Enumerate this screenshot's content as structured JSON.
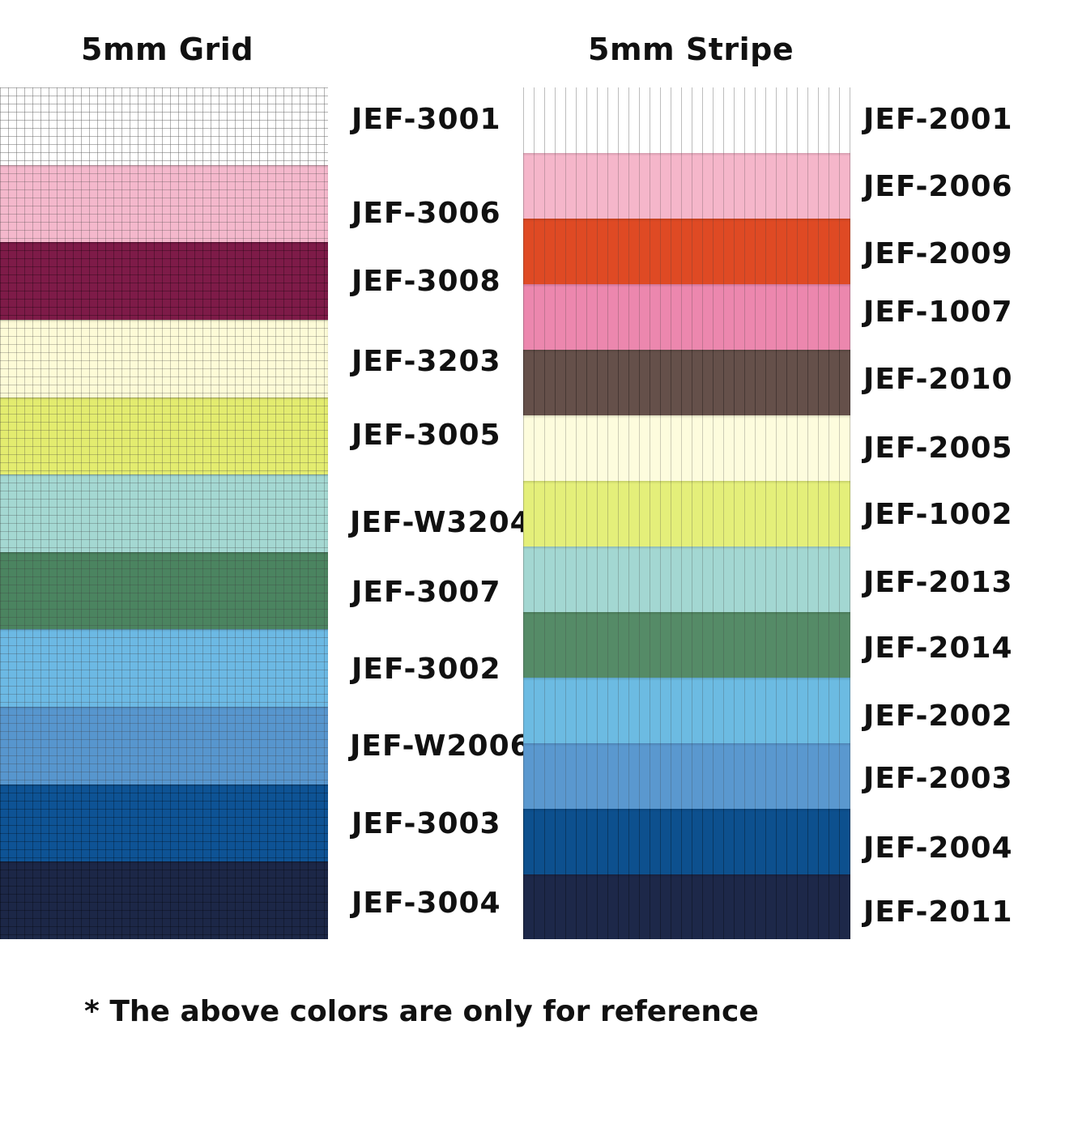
{
  "titles": {
    "grid": "5mm Grid",
    "stripe": "5mm Stripe"
  },
  "grid_swatches": [
    {
      "code": "JEF-3001",
      "color": "#ffffff"
    },
    {
      "code": "JEF-3006",
      "color": "#f4b8cc"
    },
    {
      "code": "JEF-3008",
      "color": "#7e1b48"
    },
    {
      "code": "JEF-3203",
      "color": "#fdfbd7"
    },
    {
      "code": "JEF-3005",
      "color": "#e3ec6f"
    },
    {
      "code": "JEF-W3204",
      "color": "#a4d8d2"
    },
    {
      "code": "JEF-3007",
      "color": "#4b8460"
    },
    {
      "code": "JEF-3002",
      "color": "#6cb9e4"
    },
    {
      "code": "JEF-W2006",
      "color": "#5796ce"
    },
    {
      "code": "JEF-3003",
      "color": "#0e5395"
    },
    {
      "code": "JEF-3004",
      "color": "#1c2747"
    }
  ],
  "stripe_swatches": [
    {
      "code": "JEF-2001",
      "color": "#ffffff"
    },
    {
      "code": "JEF-2006",
      "color": "#f5b6ca"
    },
    {
      "code": "JEF-2009",
      "color": "#df4a24"
    },
    {
      "code": "JEF-1007",
      "color": "#ec87ae"
    },
    {
      "code": "JEF-2010",
      "color": "#65504a"
    },
    {
      "code": "JEF-2005",
      "color": "#fdfcdd"
    },
    {
      "code": "JEF-1002",
      "color": "#e4ef7a"
    },
    {
      "code": "JEF-2013",
      "color": "#a3d7d2"
    },
    {
      "code": "JEF-2014",
      "color": "#558b67"
    },
    {
      "code": "JEF-2002",
      "color": "#6cbbe2"
    },
    {
      "code": "JEF-2003",
      "color": "#5a98cf"
    },
    {
      "code": "JEF-2004",
      "color": "#0d508e"
    },
    {
      "code": "JEF-2011",
      "color": "#1d2849"
    }
  ],
  "footnote": "* The above colors are only for reference"
}
